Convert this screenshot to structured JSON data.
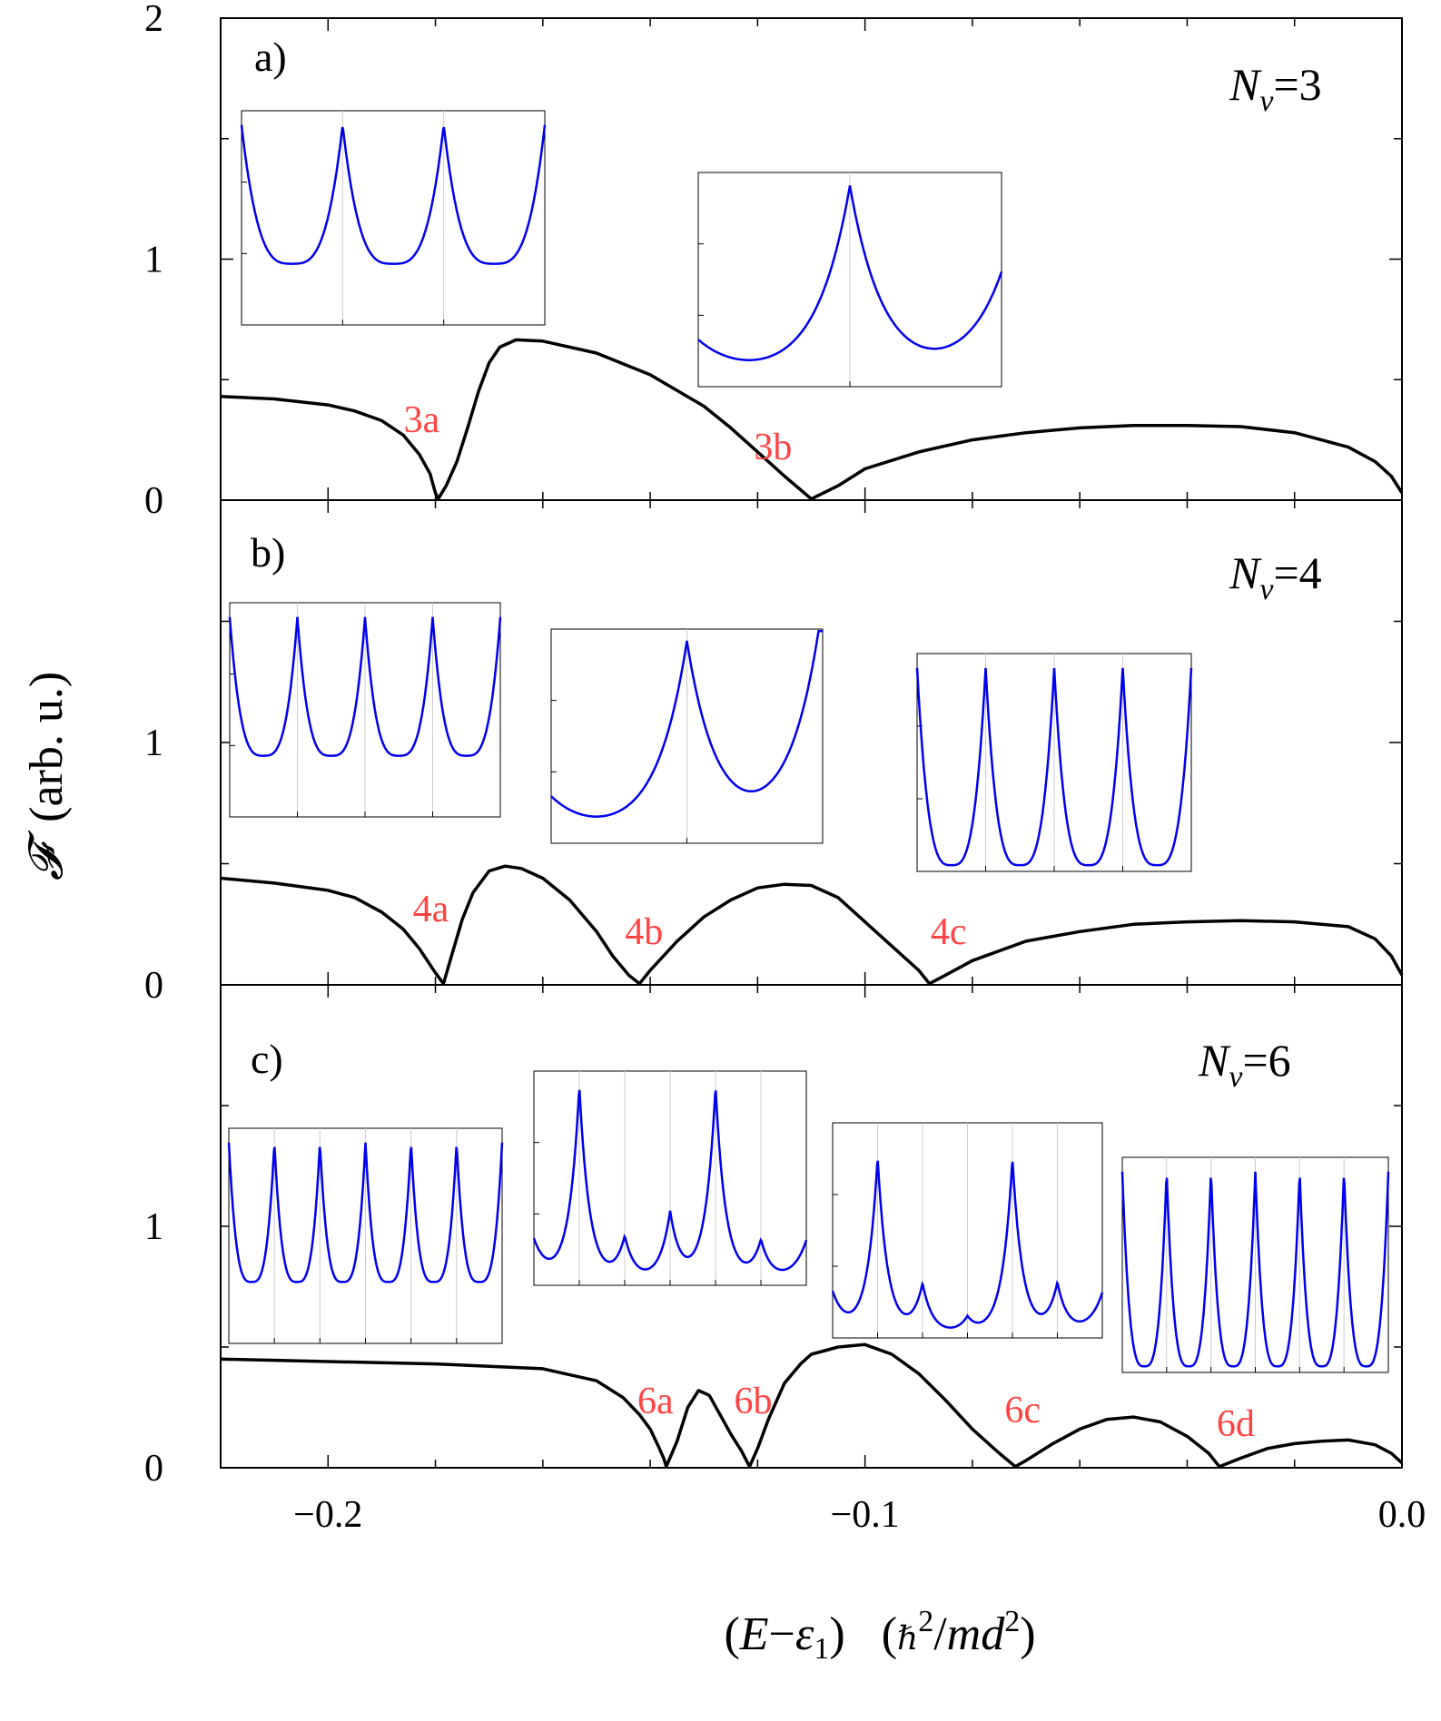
{
  "chart_data": {
    "type": "line",
    "xlabel": "(E−ε1)   (ℏ²/md²)",
    "xlabel_parts": {
      "open": "(",
      "E": "E",
      "minus": "−",
      "eps": "ε",
      "eps_sub": "1",
      "close": ")",
      "unit_open": "(",
      "hbar": "ℏ",
      "sup2": "2",
      "slash": "/",
      "md": "md",
      "close2": ")"
    },
    "ylabel": "𝓕  (arb. u.)",
    "ylabel_parts": {
      "symbol": "𝓕",
      "units": "(arb. u.)"
    },
    "xlim": [
      -0.22,
      0.0
    ],
    "xticks": [
      -0.2,
      -0.1,
      0.0
    ],
    "xtick_labels": [
      "−0.2",
      "−0.1",
      "0.0"
    ],
    "panels": [
      {
        "label": "a)",
        "nv_symbol": "N",
        "nv_sub": "v",
        "nv_value": "=3",
        "ylim": [
          0,
          2
        ],
        "yticks": [
          0,
          1,
          2
        ],
        "ytick_labels": [
          "0",
          "1",
          "2"
        ],
        "curve": {
          "x": [
            -0.22,
            -0.21,
            -0.2,
            -0.195,
            -0.19,
            -0.186,
            -0.183,
            -0.181,
            -0.18,
            -0.1795,
            -0.178,
            -0.176,
            -0.174,
            -0.172,
            -0.17,
            -0.168,
            -0.165,
            -0.16,
            -0.15,
            -0.14,
            -0.13,
            -0.125,
            -0.12,
            -0.115,
            -0.11,
            -0.105,
            -0.1,
            -0.09,
            -0.08,
            -0.07,
            -0.06,
            -0.05,
            -0.04,
            -0.03,
            -0.02,
            -0.01,
            -0.005,
            -0.002,
            0.0
          ],
          "y": [
            0.43,
            0.42,
            0.395,
            0.37,
            0.33,
            0.27,
            0.19,
            0.11,
            0.03,
            0.005,
            0.06,
            0.16,
            0.3,
            0.45,
            0.57,
            0.635,
            0.665,
            0.66,
            0.61,
            0.52,
            0.39,
            0.3,
            0.2,
            0.1,
            0.005,
            0.06,
            0.13,
            0.2,
            0.25,
            0.28,
            0.3,
            0.31,
            0.31,
            0.305,
            0.28,
            0.22,
            0.16,
            0.1,
            0.03
          ]
        },
        "points": [
          {
            "label": "3a",
            "x": -0.1795
          },
          {
            "label": "3b",
            "x": -0.1195
          }
        ],
        "insets": [
          {
            "name": "inset-3a",
            "peaks": 3,
            "shape": "periodic",
            "yticks": 2,
            "yrange": [
              0.0,
              1.05
            ]
          },
          {
            "name": "inset-3b",
            "peaks": 2,
            "shape": "peaks",
            "heights": [
              1.0,
              0.35
            ],
            "yticks": 2,
            "yrange": [
              0.0,
              1.05
            ]
          }
        ]
      },
      {
        "label": "b)",
        "nv_symbol": "N",
        "nv_sub": "v",
        "nv_value": "=4",
        "ylim": [
          0,
          2
        ],
        "yticks": [
          0,
          1
        ],
        "ytick_labels": [
          "0",
          "1"
        ],
        "curve": {
          "x": [
            -0.22,
            -0.21,
            -0.2,
            -0.195,
            -0.19,
            -0.186,
            -0.183,
            -0.18,
            -0.1785,
            -0.177,
            -0.175,
            -0.173,
            -0.17,
            -0.167,
            -0.164,
            -0.16,
            -0.155,
            -0.15,
            -0.147,
            -0.144,
            -0.142,
            -0.14,
            -0.135,
            -0.13,
            -0.125,
            -0.12,
            -0.115,
            -0.11,
            -0.105,
            -0.1,
            -0.095,
            -0.09,
            -0.088,
            -0.085,
            -0.08,
            -0.07,
            -0.06,
            -0.05,
            -0.04,
            -0.03,
            -0.02,
            -0.01,
            -0.005,
            -0.002,
            0.0
          ],
          "y": [
            0.44,
            0.42,
            0.39,
            0.36,
            0.3,
            0.23,
            0.15,
            0.05,
            0.005,
            0.12,
            0.27,
            0.38,
            0.47,
            0.49,
            0.48,
            0.44,
            0.35,
            0.22,
            0.12,
            0.04,
            0.005,
            0.06,
            0.18,
            0.28,
            0.35,
            0.4,
            0.415,
            0.41,
            0.36,
            0.26,
            0.16,
            0.06,
            0.005,
            0.04,
            0.1,
            0.18,
            0.22,
            0.25,
            0.26,
            0.265,
            0.26,
            0.24,
            0.19,
            0.12,
            0.04
          ]
        },
        "points": [
          {
            "label": "4a",
            "x": -0.1785
          },
          {
            "label": "4b",
            "x": -0.1425
          },
          {
            "label": "4c",
            "x": -0.0885
          }
        ],
        "insets": [
          {
            "name": "inset-4a",
            "peaks": 4,
            "shape": "periodic",
            "yticks": 2,
            "yrange": [
              0.0,
              1.05
            ]
          },
          {
            "name": "inset-4b",
            "peaks": 2,
            "shape": "peaks",
            "heights": [
              1.0,
              1.0
            ],
            "yticks": 2,
            "yrange": [
              0.0,
              1.05
            ]
          },
          {
            "name": "inset-4c",
            "peaks": 4,
            "shape": "periodic-deep",
            "yticks": 2,
            "yrange": [
              0.0,
              1.05
            ]
          }
        ]
      },
      {
        "label": "c)",
        "nv_symbol": "N",
        "nv_sub": "v",
        "nv_value": "=6",
        "ylim": [
          0,
          2
        ],
        "yticks": [
          0,
          1
        ],
        "ytick_labels": [
          "0",
          "1"
        ],
        "curve": {
          "x": [
            -0.22,
            -0.2,
            -0.18,
            -0.16,
            -0.15,
            -0.145,
            -0.142,
            -0.14,
            -0.1385,
            -0.1375,
            -0.137,
            -0.135,
            -0.133,
            -0.131,
            -0.129,
            -0.127,
            -0.125,
            -0.123,
            -0.1215,
            -0.12,
            -0.118,
            -0.115,
            -0.112,
            -0.11,
            -0.105,
            -0.1,
            -0.095,
            -0.09,
            -0.085,
            -0.08,
            -0.075,
            -0.072,
            -0.07,
            -0.065,
            -0.06,
            -0.055,
            -0.05,
            -0.045,
            -0.04,
            -0.036,
            -0.034,
            -0.03,
            -0.025,
            -0.02,
            -0.015,
            -0.01,
            -0.005,
            -0.002,
            0.0
          ],
          "y": [
            0.45,
            0.44,
            0.43,
            0.41,
            0.36,
            0.29,
            0.22,
            0.16,
            0.09,
            0.04,
            0.005,
            0.11,
            0.25,
            0.32,
            0.3,
            0.22,
            0.14,
            0.07,
            0.005,
            0.08,
            0.2,
            0.35,
            0.43,
            0.47,
            0.5,
            0.51,
            0.47,
            0.39,
            0.28,
            0.16,
            0.06,
            0.005,
            0.03,
            0.1,
            0.16,
            0.2,
            0.21,
            0.19,
            0.13,
            0.06,
            0.005,
            0.04,
            0.08,
            0.1,
            0.11,
            0.115,
            0.095,
            0.06,
            0.02
          ]
        },
        "points": [
          {
            "label": "6a",
            "x": -0.137
          },
          {
            "label": "6b",
            "x": -0.1215
          },
          {
            "label": "6c",
            "x": -0.072
          },
          {
            "label": "6d",
            "x": -0.034
          }
        ],
        "insets": [
          {
            "name": "inset-6a",
            "peaks": 6,
            "shape": "periodic",
            "yticks": 0,
            "yrange": [
              0.0,
              1.05
            ]
          },
          {
            "name": "inset-6b",
            "peaks": 6,
            "shape": "peaks",
            "heights": [
              1.0,
              0.22,
              0.35,
              1.0,
              0.2,
              0.0
            ],
            "yticks": 2,
            "yrange": [
              0.0,
              1.05
            ]
          },
          {
            "name": "inset-6c",
            "peaks": 6,
            "shape": "peaks",
            "heights": [
              0.9,
              0.25,
              0.08,
              0.9,
              0.25,
              0.0
            ],
            "yticks": 2,
            "yrange": [
              0.0,
              1.05
            ]
          },
          {
            "name": "inset-6d",
            "peaks": 6,
            "shape": "periodic-deep",
            "yticks": 0,
            "yrange": [
              0.0,
              1.05
            ]
          }
        ]
      }
    ]
  },
  "colors": {
    "curve": "#000000",
    "inset_curve": "#0000ee",
    "point_label": "#ff4444",
    "inset_grid": "#cccccc"
  }
}
